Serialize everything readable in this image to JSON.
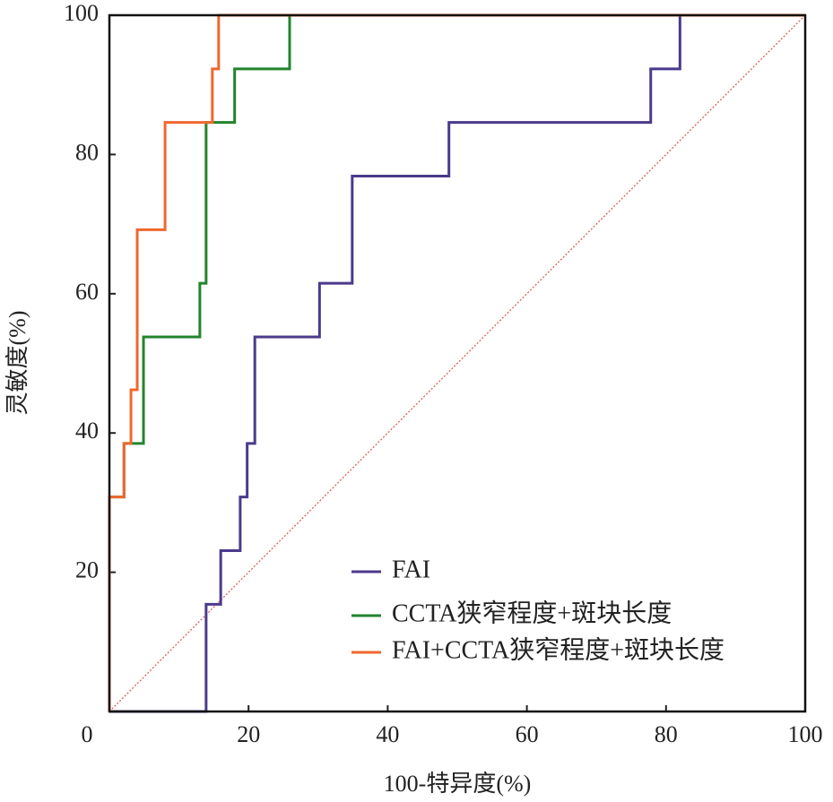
{
  "chart_data": {
    "type": "line",
    "x_label": "100-特异度(%)",
    "y_label": "灵敏度(%)",
    "xlim": [
      0,
      100
    ],
    "ylim": [
      0,
      100
    ],
    "xticks": [
      0,
      20,
      40,
      60,
      80,
      100
    ],
    "yticks": [
      20,
      40,
      60,
      80,
      100
    ],
    "series": [
      {
        "name": "FAI",
        "color": "#4b3a8c",
        "x": [
          0,
          13.9,
          13.9,
          16,
          16,
          18.8,
          18.8,
          19.8,
          19.8,
          20.9,
          20.9,
          30.2,
          30.2,
          34.9,
          34.9,
          48.8,
          48.8,
          77.8,
          77.8,
          82,
          82,
          100
        ],
        "values": [
          0,
          0,
          15.4,
          15.4,
          23.1,
          23.1,
          30.8,
          30.8,
          38.5,
          38.5,
          53.8,
          53.8,
          61.5,
          61.5,
          76.9,
          76.9,
          84.6,
          84.6,
          92.3,
          92.3,
          100,
          100
        ]
      },
      {
        "name": "CCTA狭窄程度+斑块长度",
        "color": "#22842f",
        "x": [
          0,
          0,
          2.1,
          2.1,
          4.9,
          4.9,
          13,
          13,
          13.9,
          13.9,
          18,
          18,
          25.9,
          25.9,
          100
        ],
        "values": [
          0,
          30.8,
          30.8,
          38.5,
          38.5,
          53.8,
          53.8,
          61.5,
          61.5,
          84.6,
          84.6,
          92.3,
          92.3,
          100,
          100
        ]
      },
      {
        "name": "FAI+CCTA狭窄程度+斑块长度",
        "color": "#f0672e",
        "x": [
          0,
          0,
          2.1,
          2.1,
          3.1,
          3.1,
          4,
          4,
          8,
          8,
          14.8,
          14.8,
          15.7,
          15.7,
          100
        ],
        "values": [
          0,
          30.8,
          30.8,
          38.5,
          38.5,
          46.2,
          46.2,
          69.2,
          69.2,
          84.6,
          84.6,
          92.3,
          92.3,
          100,
          100
        ]
      }
    ]
  }
}
